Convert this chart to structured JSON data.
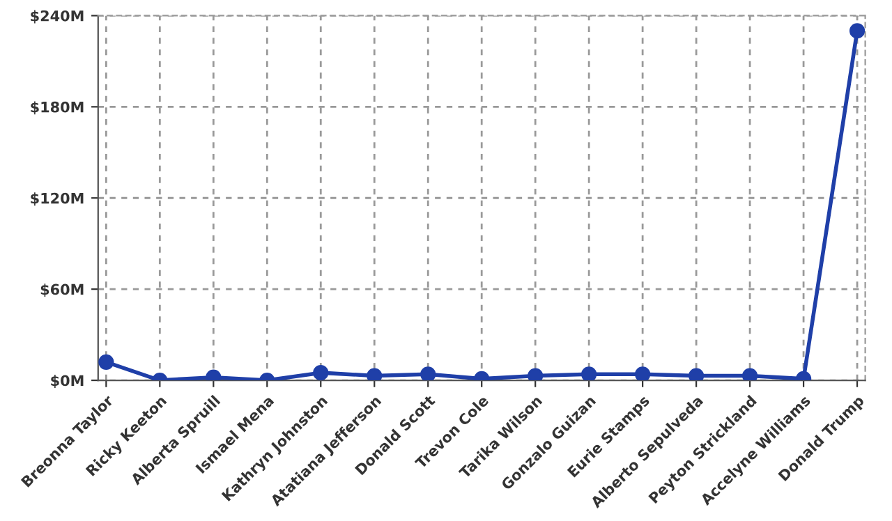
{
  "chart_data": {
    "type": "line",
    "categories": [
      "Breonna Taylor",
      "Ricky Keeton",
      "Alberta Spruill",
      "Ismael Mena",
      "Kathryn Johnston",
      "Atatiana Jefferson",
      "Donald Scott",
      "Trevon Cole",
      "Tarika Wilson",
      "Gonzalo Guizan",
      "Eurie Stamps",
      "Alberto Sepulveda",
      "Peyton Strickland",
      "Accelyne Williams",
      "Donald Trump"
    ],
    "series": [
      {
        "color": "#1f3fa8",
        "values": [
          12,
          0,
          2,
          0,
          5,
          3,
          4,
          1,
          3,
          4,
          4,
          3,
          3,
          1,
          230
        ]
      }
    ],
    "ylim": [
      0,
      240
    ],
    "yticks": [
      {
        "value": 0,
        "label": "$0M"
      },
      {
        "value": 60,
        "label": "$60M"
      },
      {
        "value": 120,
        "label": "$120M"
      },
      {
        "value": 180,
        "label": "$180M"
      },
      {
        "value": 240,
        "label": "$240M"
      }
    ],
    "grid": true,
    "marker": "circle",
    "line_style": "solid"
  }
}
